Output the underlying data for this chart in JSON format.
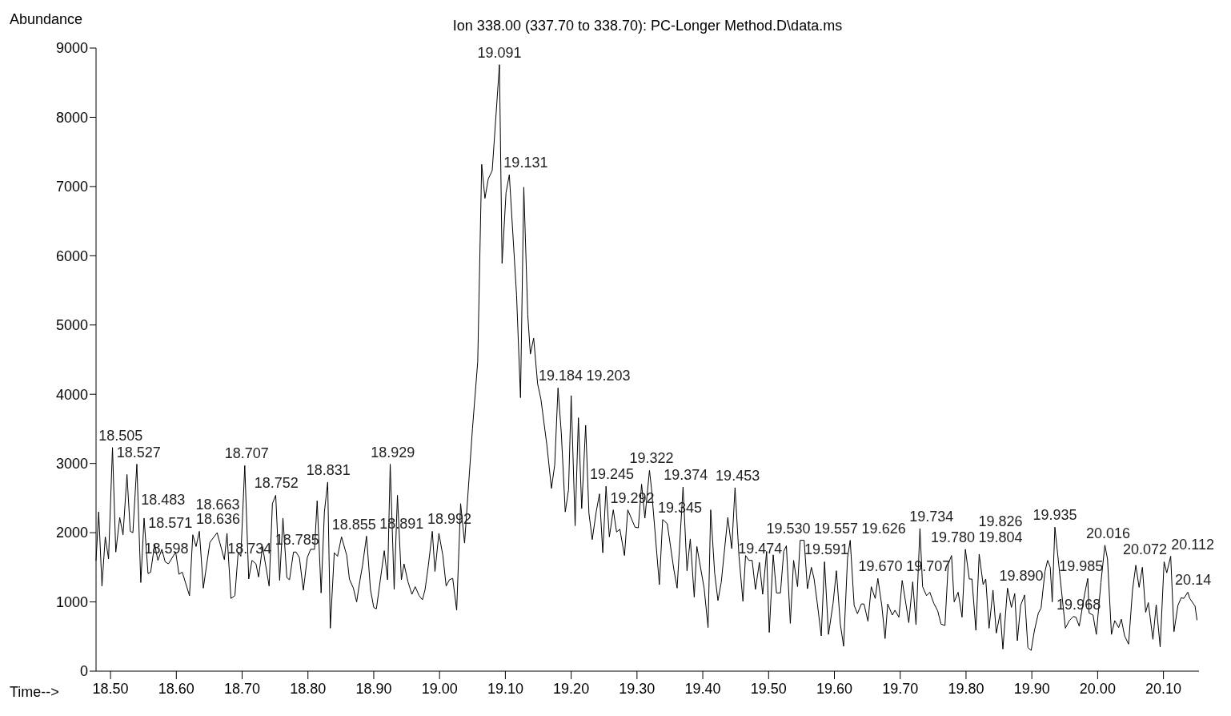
{
  "chart_data": {
    "type": "line",
    "title": "Ion 338.00 (337.70 to 338.70): PC-Longer Method.D\\data.ms",
    "xlabel": "Time-->",
    "ylabel": "Abundance",
    "xlim": [
      18.478,
      20.154
    ],
    "ylim": [
      0,
      9000
    ],
    "xticks": [
      {
        "value": 18.5,
        "label": "18.50"
      },
      {
        "value": 18.6,
        "label": "18.60"
      },
      {
        "value": 18.7,
        "label": "18.70"
      },
      {
        "value": 18.8,
        "label": "18.80"
      },
      {
        "value": 18.9,
        "label": "18.90"
      },
      {
        "value": 19.0,
        "label": "19.00"
      },
      {
        "value": 19.1,
        "label": "19.10"
      },
      {
        "value": 19.2,
        "label": "19.20"
      },
      {
        "value": 19.3,
        "label": "19.30"
      },
      {
        "value": 19.4,
        "label": "19.40"
      },
      {
        "value": 19.5,
        "label": "19.50"
      },
      {
        "value": 19.6,
        "label": "19.60"
      },
      {
        "value": 19.7,
        "label": "19.70"
      },
      {
        "value": 19.8,
        "label": "19.80"
      },
      {
        "value": 19.9,
        "label": "19.90"
      },
      {
        "value": 20.0,
        "label": "20.00"
      },
      {
        "value": 20.1,
        "label": "20.10"
      }
    ],
    "yticks": [
      0,
      1000,
      2000,
      3000,
      4000,
      5000,
      6000,
      7000,
      8000,
      9000
    ],
    "marker": "none",
    "line_style": "solid",
    "series": [
      {
        "color": "#000000",
        "x": [
          18.478,
          18.482,
          18.487,
          18.492,
          18.497,
          18.503,
          18.508,
          18.514,
          18.519,
          18.525,
          18.53,
          18.534,
          18.54,
          18.546,
          18.551,
          18.557,
          18.561,
          18.567,
          18.572,
          18.578,
          18.583,
          18.588,
          18.599,
          18.604,
          18.609,
          18.62,
          18.625,
          18.63,
          18.635,
          18.641,
          18.651,
          18.662,
          18.673,
          18.677,
          18.683,
          18.689,
          18.694,
          18.698,
          18.704,
          18.71,
          18.715,
          18.721,
          18.725,
          18.731,
          18.741,
          18.746,
          18.751,
          18.757,
          18.762,
          18.768,
          18.772,
          18.778,
          18.782,
          18.787,
          18.793,
          18.799,
          18.804,
          18.81,
          18.814,
          18.82,
          18.825,
          18.83,
          18.834,
          18.84,
          18.845,
          18.851,
          18.859,
          18.863,
          18.869,
          18.874,
          18.879,
          18.883,
          18.889,
          18.895,
          18.9,
          18.904,
          18.91,
          18.916,
          18.921,
          18.925,
          18.931,
          18.936,
          18.942,
          18.946,
          18.952,
          18.958,
          18.963,
          18.969,
          18.974,
          18.978,
          18.983,
          18.989,
          18.993,
          18.999,
          19.005,
          19.01,
          19.015,
          19.02,
          19.026,
          19.032,
          19.038,
          19.05,
          19.058,
          19.064,
          19.069,
          19.074,
          19.08,
          19.091,
          19.095,
          19.101,
          19.106,
          19.117,
          19.123,
          19.128,
          19.134,
          19.138,
          19.143,
          19.149,
          19.154,
          19.163,
          19.17,
          19.175,
          19.18,
          19.185,
          19.191,
          19.196,
          19.2,
          19.206,
          19.211,
          19.216,
          19.222,
          19.227,
          19.232,
          19.238,
          19.243,
          19.248,
          19.253,
          19.258,
          19.264,
          19.269,
          19.274,
          19.281,
          19.286,
          19.297,
          19.302,
          19.307,
          19.312,
          19.319,
          19.322,
          19.334,
          19.339,
          19.346,
          19.356,
          19.361,
          19.37,
          19.376,
          19.381,
          19.387,
          19.391,
          19.402,
          19.408,
          19.412,
          19.418,
          19.423,
          19.428,
          19.438,
          19.444,
          19.449,
          19.455,
          19.461,
          19.465,
          19.47,
          19.475,
          19.48,
          19.486,
          19.491,
          19.497,
          19.501,
          19.507,
          19.512,
          19.518,
          19.523,
          19.527,
          19.533,
          19.538,
          19.544,
          19.548,
          19.554,
          19.559,
          19.565,
          19.569,
          19.574,
          19.58,
          19.585,
          19.591,
          19.598,
          19.603,
          19.609,
          19.614,
          19.62,
          19.624,
          19.63,
          19.635,
          19.641,
          19.645,
          19.651,
          19.656,
          19.662,
          19.666,
          19.672,
          19.677,
          19.681,
          19.688,
          19.692,
          19.698,
          19.703,
          19.709,
          19.713,
          19.719,
          19.724,
          19.73,
          19.734,
          19.74,
          19.745,
          19.751,
          19.757,
          19.762,
          19.768,
          19.773,
          19.778,
          19.782,
          19.788,
          19.794,
          19.799,
          19.805,
          19.809,
          19.815,
          19.82,
          19.826,
          19.83,
          19.835,
          19.841,
          19.846,
          19.852,
          19.856,
          19.863,
          19.869,
          19.874,
          19.878,
          19.883,
          19.889,
          19.894,
          19.899,
          19.904,
          19.91,
          19.914,
          19.917,
          19.92,
          19.924,
          19.928,
          19.931,
          19.935,
          19.951,
          19.957,
          19.963,
          19.967,
          19.972,
          19.98,
          19.985,
          19.987,
          19.993,
          19.998,
          20.005,
          20.011,
          20.015,
          20.021,
          20.026,
          20.032,
          20.036,
          20.041,
          20.047,
          20.053,
          20.058,
          20.063,
          20.068,
          20.073,
          20.077,
          20.084,
          20.089,
          20.095,
          20.101,
          20.105,
          20.111,
          20.116,
          20.122,
          20.127,
          20.131,
          20.137,
          20.14,
          20.148,
          20.151
        ],
        "values": [
          1600,
          2300,
          1230,
          1940,
          1620,
          3230,
          1720,
          2220,
          1970,
          2840,
          2020,
          2000,
          2990,
          1280,
          2210,
          1410,
          1430,
          1830,
          1600,
          1760,
          1580,
          1550,
          1720,
          1400,
          1430,
          1090,
          1970,
          1800,
          2020,
          1200,
          1860,
          2000,
          1610,
          1990,
          1050,
          1090,
          1720,
          1660,
          2970,
          1330,
          1600,
          1550,
          1360,
          1800,
          1230,
          2420,
          2540,
          1310,
          2210,
          1350,
          1320,
          1720,
          1720,
          1640,
          1170,
          1640,
          1760,
          1760,
          2460,
          1130,
          2300,
          2730,
          620,
          1710,
          1660,
          1940,
          1670,
          1330,
          1200,
          1000,
          1310,
          1530,
          1950,
          1180,
          920,
          900,
          1320,
          1740,
          1320,
          2990,
          1180,
          2540,
          1320,
          1550,
          1290,
          1110,
          1220,
          1090,
          1030,
          1180,
          1530,
          2020,
          1440,
          1990,
          1670,
          1230,
          1320,
          1340,
          880,
          2420,
          1850,
          3500,
          4470,
          7320,
          6830,
          7110,
          7230,
          8760,
          5890,
          6910,
          7170,
          5430,
          3950,
          6990,
          5150,
          4580,
          4810,
          4150,
          3930,
          3270,
          2640,
          2980,
          4090,
          3440,
          2300,
          2620,
          3980,
          2100,
          3660,
          2350,
          3550,
          2280,
          1900,
          2300,
          2560,
          1710,
          2670,
          1940,
          2330,
          2010,
          2050,
          1670,
          2330,
          2080,
          2070,
          2700,
          2210,
          2900,
          2640,
          1250,
          2190,
          2130,
          1470,
          1200,
          2660,
          1450,
          1910,
          1070,
          1800,
          1200,
          630,
          2330,
          1420,
          1020,
          1280,
          2220,
          1770,
          2650,
          1660,
          1010,
          1670,
          1600,
          1600,
          1180,
          1570,
          1110,
          1730,
          560,
          1680,
          1130,
          1130,
          1730,
          1810,
          690,
          1600,
          1220,
          1890,
          1890,
          1190,
          1500,
          1340,
          980,
          510,
          1580,
          530,
          980,
          1450,
          680,
          360,
          1640,
          1890,
          950,
          830,
          970,
          970,
          720,
          1220,
          1050,
          1340,
          950,
          470,
          970,
          810,
          880,
          780,
          1310,
          950,
          700,
          1290,
          670,
          2060,
          1220,
          1090,
          1140,
          980,
          870,
          680,
          660,
          1550,
          1670,
          1000,
          1140,
          780,
          1760,
          1330,
          1330,
          590,
          1690,
          1250,
          1330,
          620,
          1170,
          550,
          840,
          320,
          1200,
          920,
          1120,
          440,
          950,
          1100,
          340,
          300,
          590,
          840,
          910,
          1180,
          1440,
          1600,
          1500,
          1000,
          2080,
          620,
          730,
          790,
          780,
          650,
          1100,
          1340,
          840,
          810,
          530,
          1280,
          1820,
          1620,
          530,
          730,
          630,
          750,
          510,
          390,
          1170,
          1530,
          1210,
          1500,
          850,
          990,
          460,
          960,
          350,
          1580,
          1420,
          1660,
          570,
          950,
          1060,
          1050,
          1140,
          1050,
          940,
          740
        ]
      }
    ],
    "annotations": [
      {
        "text": "18.483",
        "x": 18.483,
        "y": 2300
      },
      {
        "text": "18.505",
        "x": 18.505,
        "y": 3230
      },
      {
        "text": "18.527",
        "x": 18.527,
        "y": 2840
      },
      {
        "text": "18.571",
        "x": 18.571,
        "y": 1830
      },
      {
        "text": "18.598",
        "x": 18.598,
        "y": 1600
      },
      {
        "text": "18.636",
        "x": 18.636,
        "y": 2020
      },
      {
        "text": "18.663",
        "x": 18.663,
        "y": 2000
      },
      {
        "text": "18.707",
        "x": 18.707,
        "y": 2970
      },
      {
        "text": "18.734",
        "x": 18.734,
        "y": 1600
      },
      {
        "text": "18.752",
        "x": 18.752,
        "y": 2540
      },
      {
        "text": "18.785",
        "x": 18.785,
        "y": 1720
      },
      {
        "text": "18.831",
        "x": 18.831,
        "y": 2730
      },
      {
        "text": "18.855",
        "x": 18.855,
        "y": 1940
      },
      {
        "text": "18.891",
        "x": 18.891,
        "y": 1950
      },
      {
        "text": "18.929",
        "x": 18.929,
        "y": 2990
      },
      {
        "text": "18.992",
        "x": 18.992,
        "y": 2020
      },
      {
        "text": "19.091",
        "x": 19.091,
        "y": 8760
      },
      {
        "text": "19.131",
        "x": 19.131,
        "y": 6990
      },
      {
        "text": "19.184",
        "x": 19.184,
        "y": 4090
      },
      {
        "text": "19.203",
        "x": 19.203,
        "y": 3980
      },
      {
        "text": "19.245",
        "x": 19.245,
        "y": 2560
      },
      {
        "text": "19.292",
        "x": 19.292,
        "y": 2330
      },
      {
        "text": "19.322",
        "x": 19.322,
        "y": 2900
      },
      {
        "text": "19.345",
        "x": 19.345,
        "y": 2190
      },
      {
        "text": "19.374",
        "x": 19.374,
        "y": 2660
      },
      {
        "text": "19.453",
        "x": 19.453,
        "y": 2650
      },
      {
        "text": "19.474",
        "x": 19.474,
        "y": 1600
      },
      {
        "text": "19.530",
        "x": 19.53,
        "y": 1730
      },
      {
        "text": "19.557",
        "x": 19.557,
        "y": 1890
      },
      {
        "text": "19.591",
        "x": 19.591,
        "y": 1580
      },
      {
        "text": "19.626",
        "x": 19.626,
        "y": 1890
      },
      {
        "text": "19.670",
        "x": 19.67,
        "y": 1340
      },
      {
        "text": "19.707",
        "x": 19.707,
        "y": 1310
      },
      {
        "text": "19.734",
        "x": 19.734,
        "y": 2060
      },
      {
        "text": "19.780",
        "x": 19.78,
        "y": 1670
      },
      {
        "text": "19.804",
        "x": 19.804,
        "y": 1760
      },
      {
        "text": "19.826",
        "x": 19.826,
        "y": 1690
      },
      {
        "text": "19.890",
        "x": 19.89,
        "y": 1100
      },
      {
        "text": "19.935",
        "x": 19.935,
        "y": 2080
      },
      {
        "text": "19.968",
        "x": 19.968,
        "y": 790
      },
      {
        "text": "19.985",
        "x": 19.985,
        "y": 1340
      },
      {
        "text": "20.016",
        "x": 20.016,
        "y": 1820
      },
      {
        "text": "20.072",
        "x": 20.072,
        "y": 1500
      },
      {
        "text": "20.112",
        "x": 20.112,
        "y": 1660
      },
      {
        "text": "20.14",
        "x": 20.14,
        "y": 1050
      }
    ]
  }
}
